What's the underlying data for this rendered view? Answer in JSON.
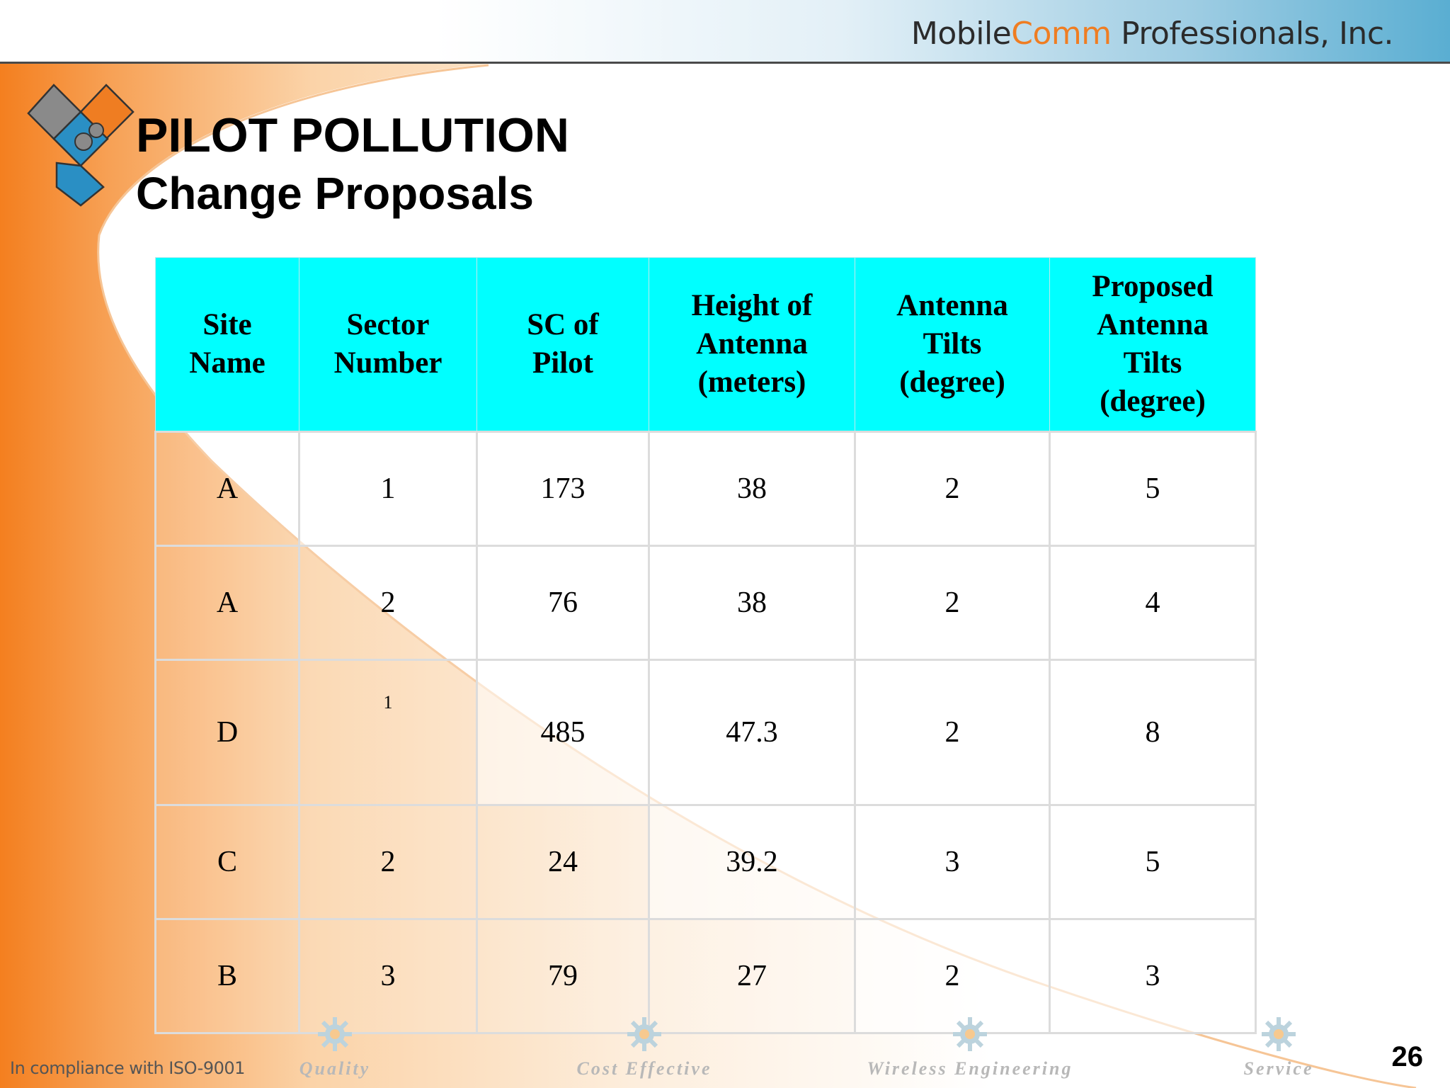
{
  "header": {
    "company_part1": "Mobile",
    "company_part2": "Comm",
    "company_part3": " Professionals, Inc."
  },
  "slide": {
    "title_line1": "PILOT POLLUTION",
    "title_line2": "Change Proposals",
    "page_number": "26"
  },
  "table": {
    "headers": [
      [
        "Site",
        "Name"
      ],
      [
        "Sector",
        "Number"
      ],
      [
        "SC of",
        "Pilot"
      ],
      [
        "Height of",
        "Antenna",
        "(meters)"
      ],
      [
        "Antenna",
        "Tilts",
        "(degree)"
      ],
      [
        "Proposed",
        "Antenna",
        "Tilts",
        "(degree)"
      ]
    ],
    "rows": [
      [
        "A",
        "1",
        "173",
        "38",
        "2",
        "5"
      ],
      [
        "A",
        "2",
        "76",
        "38",
        "2",
        "4"
      ],
      [
        "D",
        "1",
        "485",
        "47.3",
        "2",
        "8"
      ],
      [
        "C",
        "2",
        "24",
        "39.2",
        "3",
        "5"
      ],
      [
        "B",
        "3",
        "79",
        "27",
        "2",
        "3"
      ]
    ]
  },
  "footer": {
    "compliance": "In compliance with ISO-9001",
    "items": [
      "Quality",
      "Cost Effective",
      "Wireless Engineering",
      "Service"
    ]
  },
  "colors": {
    "accent_orange": "#ef7d22",
    "header_cyan": "#00ffff",
    "logo_gray": "#8a8a8a",
    "logo_blue": "#2a8fc4"
  },
  "icons": [
    "puzzle-logo-icon",
    "gear-icon"
  ]
}
